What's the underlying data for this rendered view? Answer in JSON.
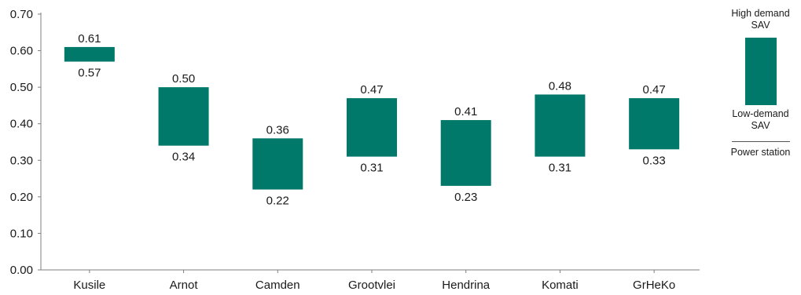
{
  "chart_data": {
    "type": "bar",
    "subtype": "floating-range",
    "categories": [
      "Kusile",
      "Arnot",
      "Camden",
      "Grootvlei",
      "Hendrina",
      "Komati",
      "GrHeKo"
    ],
    "series": [
      {
        "name": "High demand SAV",
        "values": [
          0.61,
          0.5,
          0.36,
          0.47,
          0.41,
          0.48,
          0.47
        ]
      },
      {
        "name": "Low-demand SAV",
        "values": [
          0.57,
          0.34,
          0.22,
          0.31,
          0.23,
          0.31,
          0.33
        ]
      }
    ],
    "high_labels": [
      "0.61",
      "0.50",
      "0.36",
      "0.47",
      "0.41",
      "0.48",
      "0.47"
    ],
    "low_labels": [
      "0.57",
      "0.34",
      "0.22",
      "0.31",
      "0.23",
      "0.31",
      "0.33"
    ],
    "ylim": [
      0,
      0.7
    ],
    "yticks": [
      "0.00",
      "0.10",
      "0.20",
      "0.30",
      "0.40",
      "0.50",
      "0.60",
      "0.70"
    ],
    "title": "",
    "xlabel": "",
    "ylabel": "",
    "grid": false,
    "legend_position": "right",
    "bar_color": "#00796b"
  },
  "legend": {
    "high_label": "High demand SAV",
    "low_label": "Low-demand SAV",
    "axis_label": "Power station"
  }
}
